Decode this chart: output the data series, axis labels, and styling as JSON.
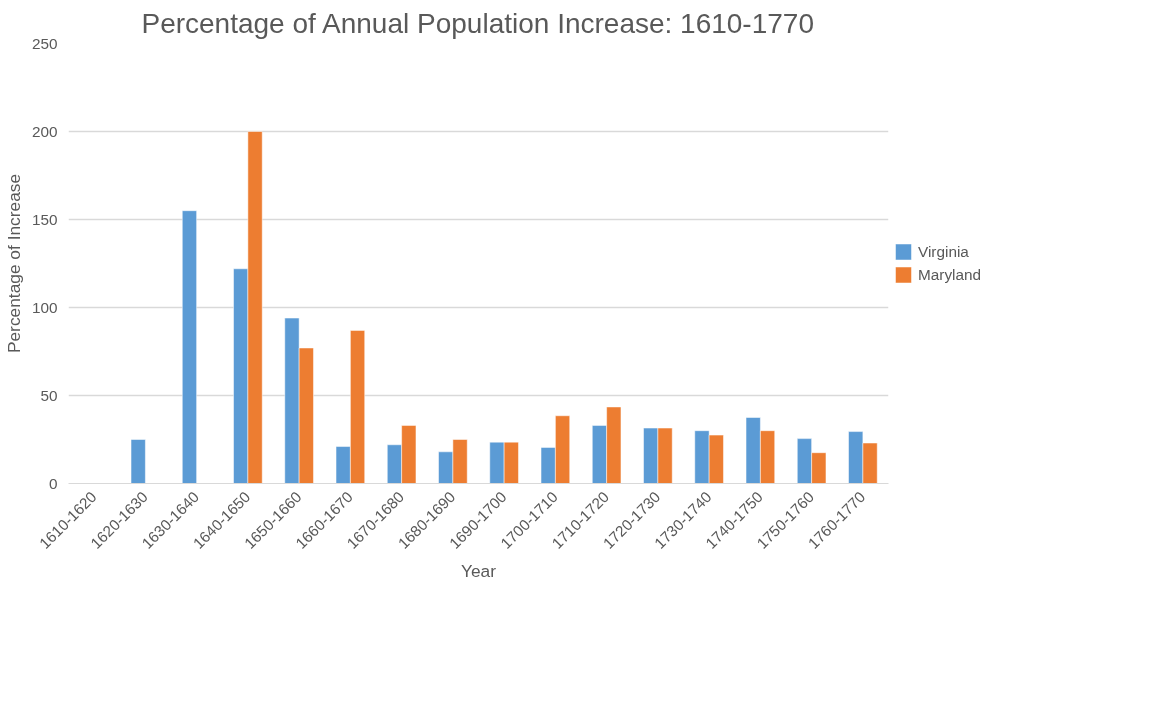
{
  "chart_data": {
    "type": "bar",
    "title": "Percentage of Annual Population Increase: 1610-1770",
    "xlabel": "Year",
    "ylabel": "Percentage of Increase",
    "categories": [
      "1610-1620",
      "1620-1630",
      "1630-1640",
      "1640-1650",
      "1650-1660",
      "1660-1670",
      "1670-1680",
      "1680-1690",
      "1690-1700",
      "1700-1710",
      "1710-1720",
      "1720-1730",
      "1730-1740",
      "1740-1750",
      "1750-1760",
      "1760-1770"
    ],
    "series": [
      {
        "name": "Virginia",
        "color": "#5b9bd5",
        "values": [
          null,
          25,
          155,
          122,
          94,
          21,
          22,
          18,
          23.5,
          20.5,
          33,
          31.5,
          30,
          37.5,
          25.5,
          29.5
        ]
      },
      {
        "name": "Maryland",
        "color": "#ed7d31",
        "values": [
          null,
          null,
          null,
          200,
          77,
          87,
          33,
          25,
          23.5,
          38.5,
          43.5,
          31.5,
          27.5,
          30,
          17.5,
          23
        ]
      }
    ],
    "ylim": [
      0,
      250
    ],
    "yticks": [
      0,
      50,
      100,
      150,
      200,
      250
    ],
    "grid": "y",
    "legend": "right"
  }
}
